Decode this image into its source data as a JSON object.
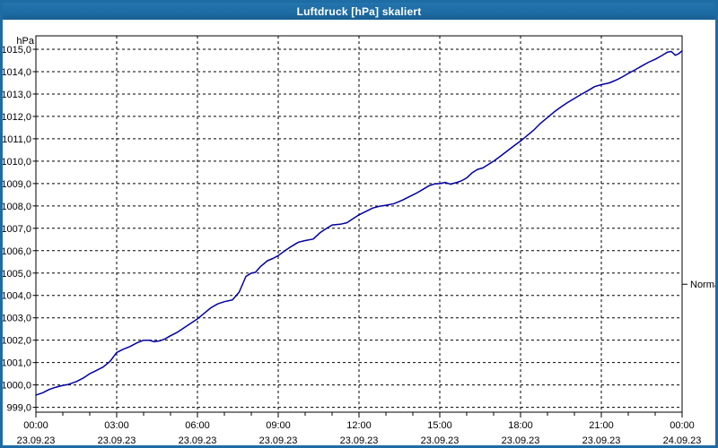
{
  "window": {
    "title": "Luftdruck [hPa] skaliert",
    "titlebar_color": "#1e6ca4",
    "border_color": "#1e6ca4"
  },
  "chart_data": {
    "type": "line",
    "title": "Luftdruck [hPa] skaliert",
    "y_unit_label": "hPa",
    "ylim": [
      999,
      1015
    ],
    "grid": "dashed-black-on-white",
    "legend_position": "none",
    "line_color": "#0000a2",
    "y_ticks": [
      {
        "value": 1015,
        "label": "1015,0"
      },
      {
        "value": 1014,
        "label": "1014,0"
      },
      {
        "value": 1013,
        "label": "1013,0"
      },
      {
        "value": 1012,
        "label": "1012,0"
      },
      {
        "value": 1011,
        "label": "1011,0"
      },
      {
        "value": 1010,
        "label": "1010,0"
      },
      {
        "value": 1009,
        "label": "1009,0"
      },
      {
        "value": 1008,
        "label": "1008,0"
      },
      {
        "value": 1007,
        "label": "1007,0"
      },
      {
        "value": 1006,
        "label": "1006,0"
      },
      {
        "value": 1005,
        "label": "1005,0"
      },
      {
        "value": 1004,
        "label": "1004,0"
      },
      {
        "value": 1003,
        "label": "1003,0"
      },
      {
        "value": 1002,
        "label": "1002,0"
      },
      {
        "value": 1001,
        "label": "1001,0"
      },
      {
        "value": 1000,
        "label": "1000,0"
      },
      {
        "value": 999,
        "label": "999,0"
      }
    ],
    "x_hours_range": [
      0,
      24
    ],
    "x_minor_tick_step_hours": 1,
    "x_major_ticks": [
      {
        "hour": 0,
        "time": "00:00",
        "date": "23.09.23"
      },
      {
        "hour": 3,
        "time": "03:00",
        "date": "23.09.23"
      },
      {
        "hour": 6,
        "time": "06:00",
        "date": "23.09.23"
      },
      {
        "hour": 9,
        "time": "09:00",
        "date": "23.09.23"
      },
      {
        "hour": 12,
        "time": "12:00",
        "date": "23.09.23"
      },
      {
        "hour": 15,
        "time": "15:00",
        "date": "23.09.23"
      },
      {
        "hour": 18,
        "time": "18:00",
        "date": "23.09.23"
      },
      {
        "hour": 21,
        "time": "21:00",
        "date": "23.09.23"
      },
      {
        "hour": 24,
        "time": "00:00",
        "date": "24.09.23"
      }
    ],
    "reference_marker": {
      "label": "Normal",
      "value": 1004.5
    },
    "series": [
      {
        "name": "Luftdruck",
        "points": [
          [
            0,
            999.55
          ],
          [
            0.25,
            999.65
          ],
          [
            0.5,
            999.8
          ],
          [
            0.75,
            999.9
          ],
          [
            1,
            999.98
          ],
          [
            1.2,
            1000.02
          ],
          [
            1.5,
            1000.15
          ],
          [
            1.75,
            1000.3
          ],
          [
            2,
            1000.5
          ],
          [
            2.25,
            1000.65
          ],
          [
            2.5,
            1000.8
          ],
          [
            2.75,
            1001.05
          ],
          [
            3,
            1001.45
          ],
          [
            3.25,
            1001.6
          ],
          [
            3.5,
            1001.72
          ],
          [
            3.75,
            1001.88
          ],
          [
            4,
            1002.0
          ],
          [
            4.2,
            1002.0
          ],
          [
            4.4,
            1001.93
          ],
          [
            4.6,
            1001.97
          ],
          [
            4.8,
            1002.06
          ],
          [
            5,
            1002.2
          ],
          [
            5.25,
            1002.35
          ],
          [
            5.5,
            1002.55
          ],
          [
            5.75,
            1002.75
          ],
          [
            6,
            1002.95
          ],
          [
            6.25,
            1003.2
          ],
          [
            6.5,
            1003.45
          ],
          [
            6.75,
            1003.62
          ],
          [
            7,
            1003.72
          ],
          [
            7.3,
            1003.8
          ],
          [
            7.55,
            1004.15
          ],
          [
            7.8,
            1004.85
          ],
          [
            8,
            1005.0
          ],
          [
            8.15,
            1005.03
          ],
          [
            8.35,
            1005.3
          ],
          [
            8.6,
            1005.55
          ],
          [
            8.8,
            1005.65
          ],
          [
            9,
            1005.78
          ],
          [
            9.25,
            1006.0
          ],
          [
            9.5,
            1006.2
          ],
          [
            9.75,
            1006.38
          ],
          [
            10,
            1006.45
          ],
          [
            10.3,
            1006.52
          ],
          [
            10.55,
            1006.8
          ],
          [
            10.8,
            1007.0
          ],
          [
            11,
            1007.15
          ],
          [
            11.3,
            1007.18
          ],
          [
            11.55,
            1007.25
          ],
          [
            11.8,
            1007.45
          ],
          [
            12,
            1007.6
          ],
          [
            12.25,
            1007.75
          ],
          [
            12.5,
            1007.9
          ],
          [
            12.75,
            1007.98
          ],
          [
            13,
            1008.03
          ],
          [
            13.3,
            1008.1
          ],
          [
            13.6,
            1008.25
          ],
          [
            13.85,
            1008.4
          ],
          [
            14.1,
            1008.55
          ],
          [
            14.35,
            1008.72
          ],
          [
            14.6,
            1008.9
          ],
          [
            14.8,
            1008.98
          ],
          [
            15,
            1009.0
          ],
          [
            15.2,
            1009.05
          ],
          [
            15.4,
            1008.97
          ],
          [
            15.6,
            1009.04
          ],
          [
            15.8,
            1009.12
          ],
          [
            16,
            1009.25
          ],
          [
            16.2,
            1009.48
          ],
          [
            16.4,
            1009.63
          ],
          [
            16.6,
            1009.7
          ],
          [
            16.8,
            1009.85
          ],
          [
            17,
            1010.0
          ],
          [
            17.25,
            1010.22
          ],
          [
            17.5,
            1010.45
          ],
          [
            17.75,
            1010.68
          ],
          [
            18,
            1010.9
          ],
          [
            18.25,
            1011.15
          ],
          [
            18.5,
            1011.4
          ],
          [
            18.75,
            1011.7
          ],
          [
            19,
            1011.95
          ],
          [
            19.25,
            1012.2
          ],
          [
            19.5,
            1012.42
          ],
          [
            19.75,
            1012.62
          ],
          [
            20,
            1012.8
          ],
          [
            20.25,
            1012.98
          ],
          [
            20.5,
            1013.15
          ],
          [
            20.75,
            1013.33
          ],
          [
            21,
            1013.42
          ],
          [
            21.3,
            1013.5
          ],
          [
            21.6,
            1013.65
          ],
          [
            21.8,
            1013.78
          ],
          [
            22,
            1013.92
          ],
          [
            22.25,
            1014.08
          ],
          [
            22.5,
            1014.25
          ],
          [
            22.75,
            1014.42
          ],
          [
            23,
            1014.55
          ],
          [
            23.25,
            1014.72
          ],
          [
            23.45,
            1014.87
          ],
          [
            23.6,
            1014.9
          ],
          [
            23.75,
            1014.73
          ],
          [
            23.87,
            1014.8
          ],
          [
            24,
            1014.93
          ]
        ]
      }
    ]
  }
}
